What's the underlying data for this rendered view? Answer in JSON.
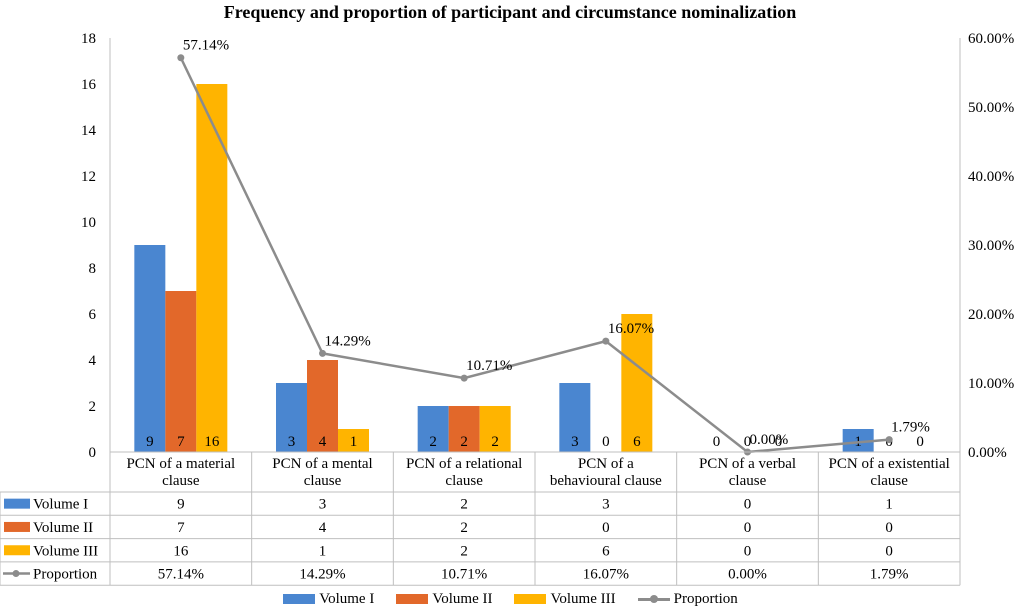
{
  "chart_data": {
    "type": "bar",
    "title": "Frequency and proportion of participant and circumstance nominalization",
    "categories": [
      "PCN of a material clause",
      "PCN of a mental clause",
      "PCN of a relational clause",
      "PCN of a behavioural clause",
      "PCN of a verbal clause",
      "PCN of a existential clause"
    ],
    "category_lines": [
      [
        "PCN of a material",
        "clause"
      ],
      [
        "PCN of a mental",
        "clause"
      ],
      [
        "PCN of a relational",
        "clause"
      ],
      [
        "PCN of a",
        "behavioural clause"
      ],
      [
        "PCN of a verbal",
        "clause"
      ],
      [
        "PCN of a existential",
        "clause"
      ]
    ],
    "series": [
      {
        "name": "Volume I",
        "values": [
          9,
          3,
          2,
          3,
          0,
          1
        ],
        "color": "#4a86d0",
        "labels": [
          "9",
          "3",
          "2",
          "3",
          "0",
          "1"
        ]
      },
      {
        "name": "Volume II",
        "values": [
          7,
          4,
          2,
          0,
          0,
          0
        ],
        "color": "#e2682a",
        "labels": [
          "7",
          "4",
          "2",
          "0",
          "0",
          "0"
        ]
      },
      {
        "name": "Volume III",
        "values": [
          16,
          1,
          2,
          6,
          0,
          0
        ],
        "color": "#ffb400",
        "labels": [
          "16",
          "1",
          "2",
          "6",
          "0",
          "0"
        ]
      }
    ],
    "line_series": {
      "name": "Proportion",
      "values": [
        57.14,
        14.29,
        10.71,
        16.07,
        0.0,
        1.79
      ],
      "labels": [
        "57.14%",
        "14.29%",
        "10.71%",
        "16.07%",
        "0.00%",
        "1.79%"
      ],
      "color": "#8c8c8c",
      "axis": "right"
    },
    "y_left": {
      "min": 0,
      "max": 18,
      "ticks": [
        "0",
        "2",
        "4",
        "6",
        "8",
        "10",
        "12",
        "14",
        "16",
        "18"
      ]
    },
    "y_right": {
      "min": 0,
      "max": 60,
      "ticks": [
        "0.00%",
        "10.00%",
        "20.00%",
        "30.00%",
        "40.00%",
        "50.00%",
        "60.00%"
      ]
    },
    "table": {
      "rows": [
        {
          "name": "Volume I",
          "cells": [
            "9",
            "3",
            "2",
            "3",
            "0",
            "1"
          ]
        },
        {
          "name": "Volume II",
          "cells": [
            "7",
            "4",
            "2",
            "0",
            "0",
            "0"
          ]
        },
        {
          "name": "Volume III",
          "cells": [
            "16",
            "1",
            "2",
            "6",
            "0",
            "0"
          ]
        },
        {
          "name": "Proportion",
          "cells": [
            "57.14%",
            "14.29%",
            "10.71%",
            "16.07%",
            "0.00%",
            "1.79%"
          ]
        }
      ]
    },
    "legend": [
      "Volume I",
      "Volume II",
      "Volume III",
      "Proportion"
    ],
    "legend_position": "bottom",
    "grid": false
  }
}
